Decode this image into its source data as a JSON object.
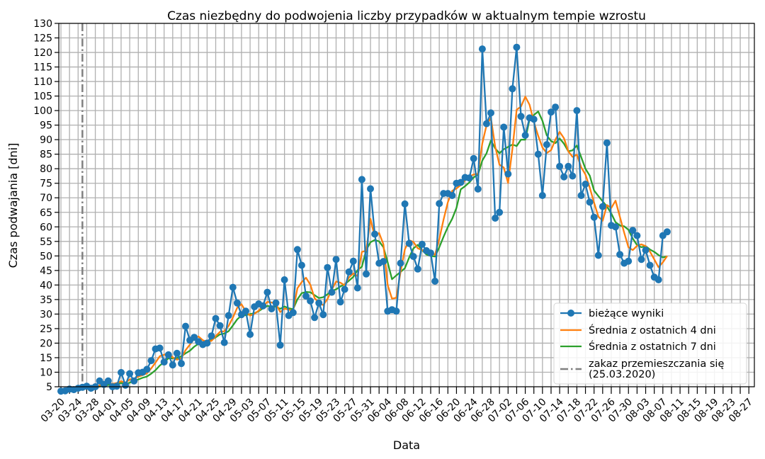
{
  "chart_data": {
    "type": "line",
    "title": "Czas niezbędny do podwojenia liczby przypadków w aktualnym tempie wzrostu",
    "xlabel": "Data",
    "ylabel": "Czas podwajania [dni]",
    "ylim": [
      5,
      130
    ],
    "yticks": [
      5,
      10,
      15,
      20,
      25,
      30,
      35,
      40,
      45,
      50,
      55,
      60,
      65,
      70,
      75,
      80,
      85,
      90,
      95,
      100,
      105,
      110,
      115,
      120,
      125,
      130
    ],
    "x_start": "03-20",
    "x_end": "08-27",
    "x_tick_labels": [
      "03-20",
      "03-24",
      "03-28",
      "04-01",
      "04-05",
      "04-09",
      "04-13",
      "04-17",
      "04-21",
      "04-25",
      "04-29",
      "05-03",
      "05-07",
      "05-11",
      "05-15",
      "05-19",
      "05-23",
      "05-27",
      "05-31",
      "06-04",
      "06-08",
      "06-12",
      "06-16",
      "06-20",
      "06-24",
      "06-28",
      "07-02",
      "07-06",
      "07-10",
      "07-14",
      "07-18",
      "07-22",
      "07-26",
      "07-30",
      "08-03",
      "08-07",
      "08-11",
      "08-15",
      "08-19",
      "08-23",
      "08-27"
    ],
    "grid": true,
    "legend_position": "bottom-right",
    "vline": {
      "x": "03-25",
      "label": "zakaz przemieszczania się\n(25.03.2020)",
      "color": "#808080"
    },
    "series": [
      {
        "name": "bieżące wyniki",
        "color": "#1f77b4",
        "markers": true,
        "start": "03-20",
        "values": [
          3.5,
          3.6,
          4.2,
          4.0,
          4.5,
          4.8,
          5.2,
          4.5,
          5.0,
          7.0,
          5.8,
          7.0,
          5.0,
          5.2,
          9.9,
          5.5,
          9.5,
          7.0,
          9.8,
          10.0,
          11.0,
          14.0,
          18.0,
          18.3,
          13.5,
          16.0,
          12.5,
          16.5,
          13.0,
          25.8,
          21.0,
          22.0,
          20.5,
          19.5,
          20.0,
          22.5,
          28.5,
          26.0,
          20.2,
          29.5,
          39.2,
          33.8,
          29.8,
          31.0,
          23.0,
          32.5,
          33.5,
          32.8,
          37.5,
          31.8,
          33.8,
          19.3,
          41.8,
          29.5,
          30.5,
          52.2,
          46.8,
          36.2,
          34.5,
          28.8,
          33.8,
          29.8,
          46.0,
          37.5,
          48.8,
          34.2,
          38.5,
          44.5,
          48.2,
          39.0,
          76.3,
          43.8,
          73.1,
          57.5,
          47.5,
          48.1,
          31.0,
          31.5,
          31.0,
          47.5,
          67.9,
          54.3,
          49.8,
          45.5,
          54.0,
          51.8,
          51.0,
          41.3,
          68.0,
          71.5,
          71.5,
          70.8,
          75.0,
          75.3,
          77.0,
          76.8,
          83.5,
          73.0,
          121.2,
          95.5,
          99.2,
          63.0,
          65.0,
          94.3,
          78.2,
          107.5,
          121.8,
          98.0,
          91.5,
          97.5,
          97.0,
          85.0,
          70.8,
          88.3,
          99.5,
          101.2,
          80.8,
          77.2,
          80.8,
          77.5,
          100.0,
          70.8,
          74.7,
          68.5,
          63.3,
          50.2,
          67.0,
          88.9,
          60.5,
          60.0,
          50.5,
          47.5,
          48.2,
          58.8,
          57.0,
          48.8,
          52.0,
          46.8,
          42.7,
          41.8,
          57.0,
          58.3
        ]
      },
      {
        "name": "Średnia z ostatnich 4 dni",
        "color": "#ff7f0e",
        "markers": false,
        "start": "03-20",
        "values": [
          3.5,
          3.6,
          3.9,
          3.8,
          4.1,
          4.4,
          4.6,
          4.8,
          4.9,
          5.5,
          5.6,
          6.2,
          6.0,
          6.3,
          6.9,
          6.4,
          7.5,
          7.8,
          8.5,
          9.0,
          9.6,
          11.3,
          13.3,
          15.5,
          16.0,
          16.5,
          15.1,
          14.3,
          14.8,
          17.6,
          19.5,
          21.6,
          22.3,
          21.0,
          20.5,
          20.8,
          22.4,
          23.9,
          24.1,
          25.9,
          28.8,
          32.2,
          33.4,
          30.9,
          29.5,
          30.1,
          31.2,
          32.7,
          34.2,
          34.0,
          33.5,
          30.7,
          31.9,
          31.5,
          31.2,
          38.9,
          41.0,
          42.5,
          40.1,
          35.5,
          33.9,
          33.1,
          35.2,
          38.4,
          41.2,
          40.8,
          39.9,
          42.6,
          44.0,
          43.1,
          51.4,
          51.8,
          62.8,
          56.6,
          57.9,
          54.0,
          40.0,
          35.3,
          35.6,
          44.5,
          52.3,
          55.4,
          54.8,
          52.6,
          52.0,
          51.6,
          51.1,
          50.4,
          55.8,
          62.5,
          68.5,
          72.4,
          73.2,
          74.4,
          76.0,
          77.4,
          78.0,
          78.3,
          88.7,
          95.0,
          97.5,
          87.6,
          81.4,
          80.4,
          75.1,
          86.8,
          100.3,
          101.4,
          104.8,
          102.0,
          96.1,
          91.3,
          87.3,
          85.4,
          86.4,
          90.0,
          92.7,
          90.5,
          86.0,
          84.1,
          84.8,
          80.5,
          78.0,
          73.5,
          68.3,
          63.5,
          62.1,
          67.5,
          66.5,
          69.0,
          63.5,
          58.0,
          53.0,
          52.0,
          53.5,
          54.0,
          53.4,
          51.5,
          48.8,
          46.1,
          47.8,
          50.0
        ]
      },
      {
        "name": "Średnia z ostatnich 7 dni",
        "color": "#2ca02c",
        "markers": false,
        "start": "03-20",
        "values": [
          3.5,
          3.6,
          3.8,
          3.8,
          4.0,
          4.2,
          4.4,
          4.6,
          4.7,
          5.1,
          5.3,
          5.6,
          5.6,
          5.8,
          6.3,
          6.0,
          6.4,
          7.1,
          7.5,
          8.1,
          8.5,
          9.5,
          10.7,
          12.3,
          13.4,
          14.8,
          14.8,
          14.9,
          15.5,
          16.5,
          17.4,
          18.8,
          19.8,
          20.2,
          20.6,
          21.1,
          22.0,
          23.0,
          23.3,
          24.1,
          26.1,
          28.2,
          29.5,
          29.6,
          30.0,
          30.3,
          31.0,
          32.0,
          32.8,
          32.6,
          32.5,
          31.8,
          32.6,
          32.0,
          31.7,
          35.1,
          37.2,
          37.6,
          37.5,
          36.5,
          35.5,
          35.8,
          36.8,
          38.0,
          38.5,
          39.5,
          40.2,
          41.5,
          42.8,
          45.1,
          46.3,
          52.0,
          54.7,
          55.5,
          55.0,
          53.0,
          47.8,
          42.0,
          43.3,
          44.5,
          45.8,
          49.5,
          52.6,
          53.8,
          52.0,
          50.5,
          50.0,
          49.8,
          53.0,
          56.6,
          60.0,
          62.8,
          66.5,
          72.9,
          74.0,
          75.3,
          77.0,
          78.0,
          82.8,
          85.3,
          89.7,
          87.0,
          85.3,
          86.7,
          87.5,
          88.3,
          87.8,
          90.0,
          90.0,
          97.0,
          98.5,
          99.7,
          96.5,
          91.5,
          89.5,
          88.8,
          90.4,
          88.6,
          86.0,
          86.3,
          88.0,
          84.0,
          80.0,
          77.6,
          72.5,
          70.6,
          68.8,
          67.0,
          64.6,
          61.6,
          60.5,
          60.2,
          59.0,
          56.0,
          53.7,
          53.0,
          53.4,
          52.2,
          51.4,
          50.3,
          49.5,
          49.8
        ]
      }
    ]
  }
}
